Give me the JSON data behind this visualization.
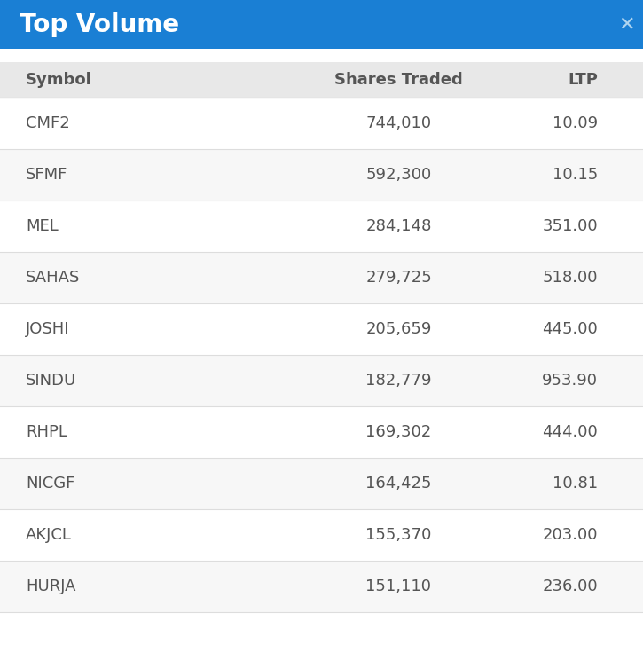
{
  "title": "Top Volume",
  "title_bg_color": "#1a7fd4",
  "title_text_color": "#ffffff",
  "title_fontsize": 20,
  "header_bg_color": "#e8e8e8",
  "header_text_color": "#555555",
  "headers": [
    "Symbol",
    "Shares Traded",
    "LTP"
  ],
  "rows": [
    [
      "CMF2",
      "744,010",
      "10.09"
    ],
    [
      "SFMF",
      "592,300",
      "10.15"
    ],
    [
      "MEL",
      "284,148",
      "351.00"
    ],
    [
      "SAHAS",
      "279,725",
      "518.00"
    ],
    [
      "JOSHI",
      "205,659",
      "445.00"
    ],
    [
      "SINDU",
      "182,779",
      "953.90"
    ],
    [
      "RHPL",
      "169,302",
      "444.00"
    ],
    [
      "NICGF",
      "164,425",
      "10.81"
    ],
    [
      "AKJCL",
      "155,370",
      "203.00"
    ],
    [
      "HURJA",
      "151,110",
      "236.00"
    ]
  ],
  "row_odd_bg": "#f7f7f7",
  "row_even_bg": "#ffffff",
  "row_text_color": "#555555",
  "divider_color": "#dddddd",
  "outer_bg_color": "#ffffff",
  "fig_width": 7.25,
  "fig_height": 7.27,
  "dpi": 100
}
